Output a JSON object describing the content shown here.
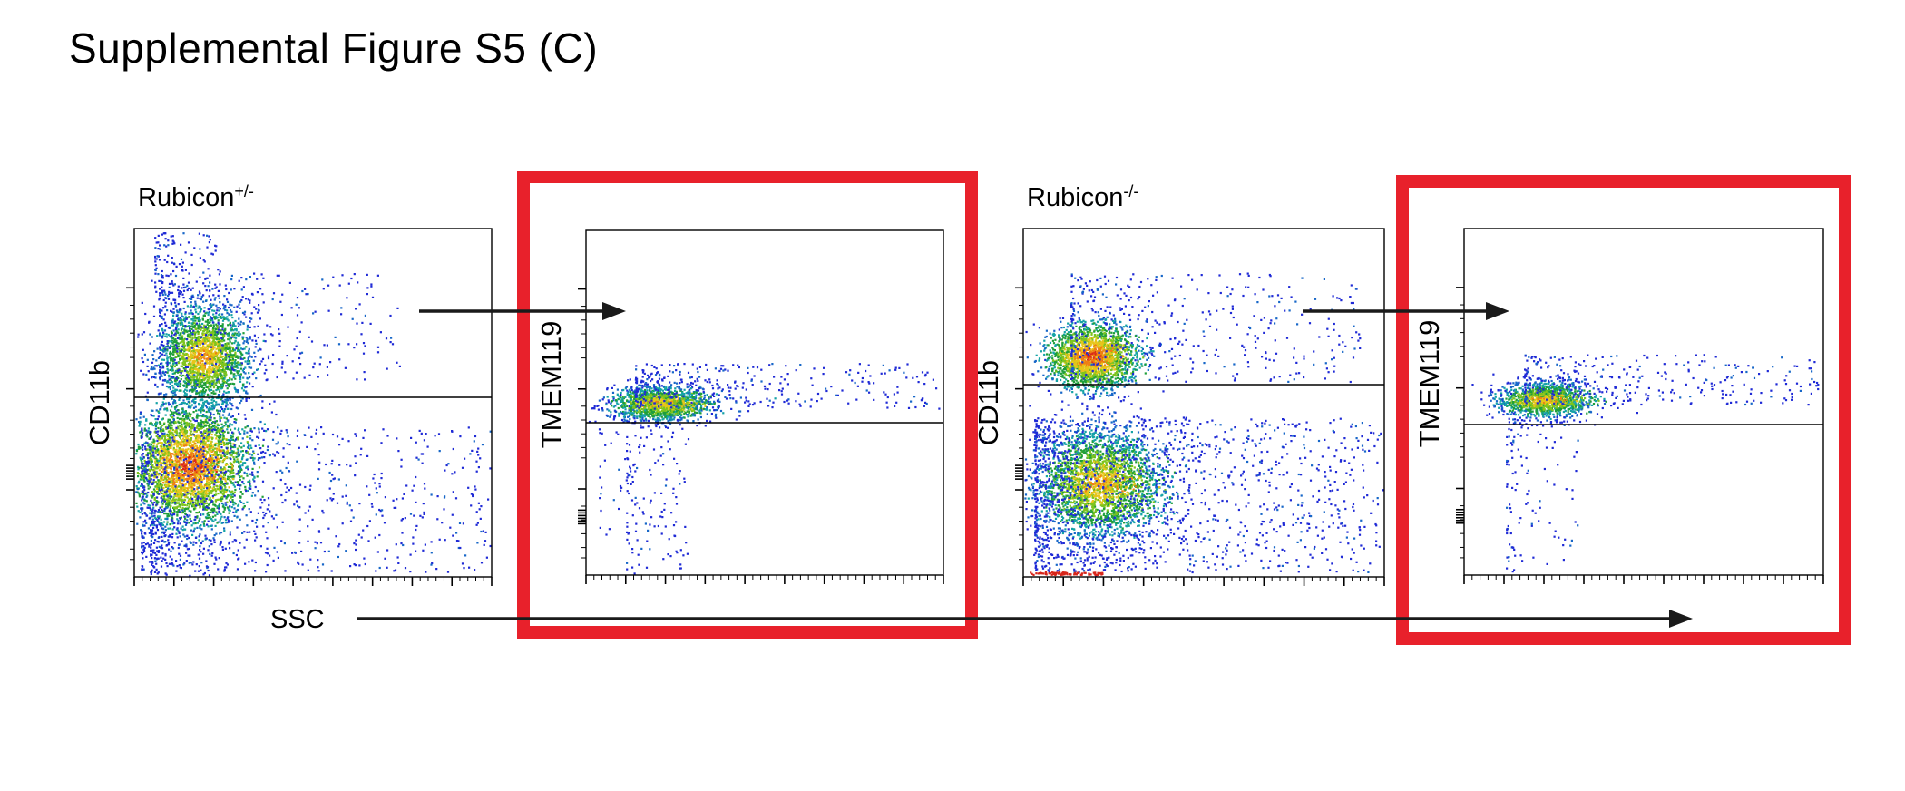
{
  "figure": {
    "title": "Supplemental Figure S5 (C)",
    "x_axis_label": "SSC",
    "colors": {
      "highlight_box": "#e8212b",
      "arrow": "#1a1a1a",
      "axis": "#000000"
    }
  },
  "chart_data": [
    {
      "type": "scatter",
      "panel": "Rubicon+/- CD11b vs SSC",
      "title": "Rubicon",
      "title_sup": "+/-",
      "ylabel": "CD11b",
      "gate": "horizontal line",
      "x_ticks_label_visible": false,
      "populations": [
        {
          "name": "CD11b high",
          "center": [
            0.17,
            0.3
          ],
          "density": "high"
        },
        {
          "name": "CD11b low",
          "center": [
            0.12,
            0.68
          ],
          "density": "high"
        }
      ]
    },
    {
      "type": "scatter",
      "panel": "Rubicon+/- TMEM119 vs SSC (gated CD11b high)",
      "title": "",
      "ylabel": "TMEM119",
      "gate": "horizontal line",
      "highlighted": true,
      "populations": [
        {
          "name": "TMEM119 positive",
          "center": [
            0.17,
            0.5
          ],
          "density": "high"
        }
      ]
    },
    {
      "type": "scatter",
      "panel": "Rubicon-/- CD11b vs SSC",
      "title": "Rubicon",
      "title_sup": "-/-",
      "ylabel": "CD11b",
      "gate": "horizontal line",
      "populations": [
        {
          "name": "CD11b high",
          "center": [
            0.15,
            0.36
          ],
          "density": "high"
        },
        {
          "name": "CD11b low",
          "center": [
            0.17,
            0.72
          ],
          "density": "high"
        }
      ]
    },
    {
      "type": "scatter",
      "panel": "Rubicon-/- TMEM119 vs SSC (gated CD11b high)",
      "title": "",
      "ylabel": "TMEM119",
      "gate": "horizontal line",
      "highlighted": true,
      "populations": [
        {
          "name": "TMEM119 positive",
          "center": [
            0.15,
            0.5
          ],
          "density": "high"
        }
      ]
    }
  ]
}
